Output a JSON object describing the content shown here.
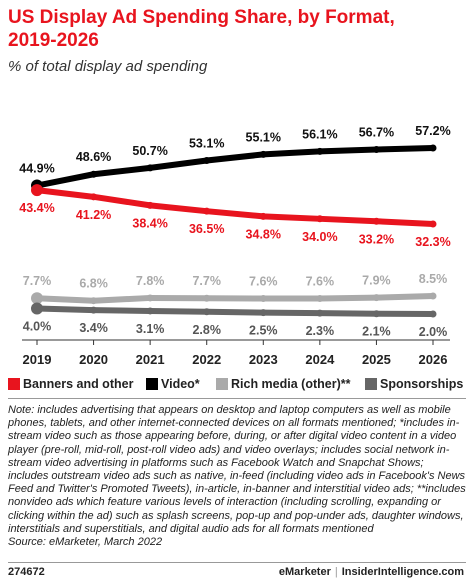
{
  "header": {
    "title": "US Display Ad Spending Share, by Format, 2019-2026",
    "subtitle": "% of total display ad spending"
  },
  "chart_data": {
    "type": "line",
    "title": "US Display Ad Spending Share, by Format, 2019-2026",
    "subtitle": "% of total display ad spending",
    "xlabel": "",
    "ylabel": "",
    "x": [
      "2019",
      "2020",
      "2021",
      "2022",
      "2023",
      "2024",
      "2025",
      "2026"
    ],
    "ylim": [
      0,
      60
    ],
    "grid": false,
    "legend_position": "bottom",
    "series": [
      {
        "name": "Video*",
        "color": "#000000",
        "values": [
          44.9,
          48.6,
          50.7,
          53.1,
          55.1,
          56.1,
          56.7,
          57.2
        ],
        "labels": [
          "44.9%",
          "48.6%",
          "50.7%",
          "53.1%",
          "55.1%",
          "56.1%",
          "56.7%",
          "57.2%"
        ]
      },
      {
        "name": "Banners and other",
        "color": "#e8141e",
        "values": [
          43.4,
          41.2,
          38.4,
          36.5,
          34.8,
          34.0,
          33.2,
          32.3
        ],
        "labels": [
          "43.4%",
          "41.2%",
          "38.4%",
          "36.5%",
          "34.8%",
          "34.0%",
          "33.2%",
          "32.3%"
        ]
      },
      {
        "name": "Rich media (other)**",
        "color": "#aaaaaa",
        "values": [
          7.7,
          6.8,
          7.8,
          7.7,
          7.6,
          7.6,
          7.9,
          8.5
        ],
        "labels": [
          "7.7%",
          "6.8%",
          "7.8%",
          "7.7%",
          "7.6%",
          "7.6%",
          "7.9%",
          "8.5%"
        ]
      },
      {
        "name": "Sponsorships",
        "color": "#666666",
        "values": [
          4.0,
          3.4,
          3.1,
          2.8,
          2.5,
          2.3,
          2.1,
          2.0
        ],
        "labels": [
          "4.0%",
          "3.4%",
          "3.1%",
          "2.8%",
          "2.5%",
          "2.3%",
          "2.1%",
          "2.0%"
        ]
      }
    ]
  },
  "legend": [
    {
      "label": "Banners and other",
      "color": "#e8141e"
    },
    {
      "label": "Video*",
      "color": "#000000"
    },
    {
      "label": "Rich media (other)**",
      "color": "#aaaaaa"
    },
    {
      "label": "Sponsorships",
      "color": "#666666"
    }
  ],
  "note": "Note: includes advertising that appears on desktop and laptop computers as well as mobile phones, tablets, and other internet-connected devices on all formats mentioned; *includes in-stream video such as those appearing before, during, or after digital video content in a video player (pre-roll, mid-roll, post-roll video ads) and video overlays; includes social network in-stream video advertising in platforms such as Facebook Watch and Snapchat Shows; includes outstream video ads such as native, in-feed (including video ads in Facebook's News Feed and Twitter's Promoted Tweets), in-article, in-banner and interstitial video ads; **includes nonvideo ads which feature various levels of interaction (including scrolling, expanding or clicking within the ad) such as splash screens, pop-up and pop-under ads, daughter windows, interstitials and superstitials, and digital audio ads for all formats mentioned",
  "source": "Source: eMarketer, March 2022",
  "footer": {
    "id": "274672",
    "brand": "eMarketer",
    "site": "InsiderIntelligence.com"
  },
  "colors": {
    "accent": "#e8141e",
    "video": "#000000",
    "rich_media": "#aaaaaa",
    "sponsorships": "#666666"
  }
}
